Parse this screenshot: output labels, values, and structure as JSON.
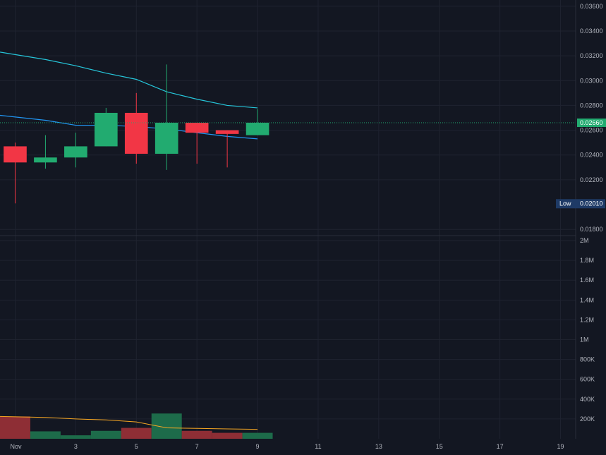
{
  "colors": {
    "background": "#131722",
    "grid": "#1f2330",
    "up": "#22ab70",
    "down": "#f23645",
    "up_volume": "#1d6b4a",
    "down_volume": "#8e2e35",
    "ma_fast": "#2196f3",
    "ma_slow": "#26c6da",
    "volume_ma": "#f5a623",
    "axis_text": "#b2b5be",
    "last_price_badge": "#22ab70",
    "low_badge": "#1e3a66"
  },
  "chart_data": {
    "type": "candlestick",
    "price_axis": {
      "range": [
        0.0175,
        0.0365
      ],
      "ticks": [
        "0.01800",
        "0.02200",
        "0.02400",
        "0.02600",
        "0.02800",
        "0.03000",
        "0.03200",
        "0.03400",
        "0.03600"
      ],
      "last_price_label": "0.02660",
      "last_price": 0.0266,
      "low_label": "Low",
      "low_value_label": "0.02010",
      "low_value": 0.0201
    },
    "volume_axis": {
      "range": [
        0,
        2050000
      ],
      "ticks": [
        {
          "label": "2M",
          "value": 2000000
        },
        {
          "label": "1.8M",
          "value": 1800000
        },
        {
          "label": "1.6M",
          "value": 1600000
        },
        {
          "label": "1.4M",
          "value": 1400000
        },
        {
          "label": "1.2M",
          "value": 1200000
        },
        {
          "label": "1M",
          "value": 1000000
        },
        {
          "label": "800K",
          "value": 800000
        },
        {
          "label": "600K",
          "value": 600000
        },
        {
          "label": "400K",
          "value": 400000
        },
        {
          "label": "200K",
          "value": 200000
        }
      ]
    },
    "time_axis": {
      "range": [
        0.5,
        19.5
      ],
      "ticks": [
        {
          "label": "Nov",
          "day": 1
        },
        {
          "label": "3",
          "day": 3
        },
        {
          "label": "5",
          "day": 5
        },
        {
          "label": "7",
          "day": 7
        },
        {
          "label": "9",
          "day": 9
        },
        {
          "label": "11",
          "day": 11
        },
        {
          "label": "13",
          "day": 13
        },
        {
          "label": "15",
          "day": 15
        },
        {
          "label": "17",
          "day": 17
        },
        {
          "label": "19",
          "day": 19
        }
      ]
    },
    "candles": [
      {
        "day": 1,
        "open": 0.0247,
        "high": 0.025,
        "low": 0.0201,
        "close": 0.0234
      },
      {
        "day": 2,
        "open": 0.0234,
        "high": 0.0256,
        "low": 0.0229,
        "close": 0.0238
      },
      {
        "day": 3,
        "open": 0.0238,
        "high": 0.0258,
        "low": 0.023,
        "close": 0.0247
      },
      {
        "day": 4,
        "open": 0.0247,
        "high": 0.0278,
        "low": 0.0247,
        "close": 0.0274
      },
      {
        "day": 5,
        "open": 0.0274,
        "high": 0.029,
        "low": 0.0233,
        "close": 0.0241
      },
      {
        "day": 6,
        "open": 0.0241,
        "high": 0.0313,
        "low": 0.0228,
        "close": 0.0266
      },
      {
        "day": 7,
        "open": 0.0266,
        "high": 0.0266,
        "low": 0.0233,
        "close": 0.0258
      },
      {
        "day": 8,
        "open": 0.026,
        "high": 0.026,
        "low": 0.023,
        "close": 0.0257
      },
      {
        "day": 9,
        "open": 0.0256,
        "high": 0.0277,
        "low": 0.0256,
        "close": 0.0266
      }
    ],
    "volumes": [
      {
        "day": 1,
        "value": 225000,
        "direction": "down"
      },
      {
        "day": 2,
        "value": 75000,
        "direction": "up"
      },
      {
        "day": 3,
        "value": 35000,
        "direction": "up"
      },
      {
        "day": 4,
        "value": 80000,
        "direction": "up"
      },
      {
        "day": 5,
        "value": 110000,
        "direction": "down"
      },
      {
        "day": 6,
        "value": 255000,
        "direction": "up"
      },
      {
        "day": 7,
        "value": 80000,
        "direction": "down"
      },
      {
        "day": 8,
        "value": 60000,
        "direction": "down"
      },
      {
        "day": 9,
        "value": 60000,
        "direction": "up"
      }
    ],
    "moving_averages": [
      {
        "key": "ma_slow",
        "points": [
          [
            0.5,
            0.0323
          ],
          [
            2,
            0.0317
          ],
          [
            3,
            0.0312
          ],
          [
            4,
            0.0306
          ],
          [
            5,
            0.0301
          ],
          [
            6,
            0.0291
          ],
          [
            7,
            0.0285
          ],
          [
            8,
            0.028
          ],
          [
            9,
            0.0278
          ]
        ]
      },
      {
        "key": "ma_fast",
        "points": [
          [
            0.5,
            0.0272
          ],
          [
            2,
            0.0268
          ],
          [
            3,
            0.0264
          ],
          [
            4,
            0.0264
          ],
          [
            5,
            0.0263
          ],
          [
            6,
            0.0261
          ],
          [
            7,
            0.0258
          ],
          [
            8,
            0.0255
          ],
          [
            9,
            0.0253
          ]
        ]
      }
    ],
    "volume_ma": [
      [
        0.5,
        225000
      ],
      [
        2,
        215000
      ],
      [
        3,
        200000
      ],
      [
        4,
        190000
      ],
      [
        5,
        170000
      ],
      [
        6,
        110000
      ],
      [
        7,
        105000
      ],
      [
        8,
        100000
      ],
      [
        9,
        95000
      ]
    ],
    "grid": true
  }
}
